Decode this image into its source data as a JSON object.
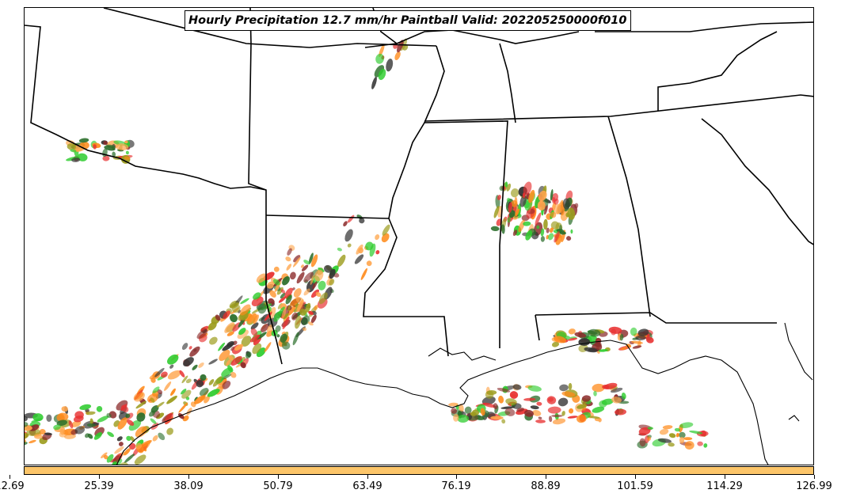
{
  "title": "Hourly Precipitation 12.7 mm/hr Paintball Valid: 202205250000f010",
  "colorbar": {
    "color": "#fcc569",
    "tick_labels": [
      "12.69",
      "25.39",
      "38.09",
      "50.79",
      "63.49",
      "76.19",
      "88.89",
      "101.59",
      "114.29",
      "126.99"
    ]
  },
  "map": {
    "region": "Southern United States / Gulf Coast",
    "features": [
      "state-boundaries",
      "coastline",
      "paintball-precipitation-contours"
    ],
    "member_colors": [
      "#e83030",
      "#ff8a1a",
      "#2ecc2e",
      "#9c9c1e",
      "#8b2a2a",
      "#2a6e2a",
      "#333333",
      "#ffa64d"
    ]
  }
}
